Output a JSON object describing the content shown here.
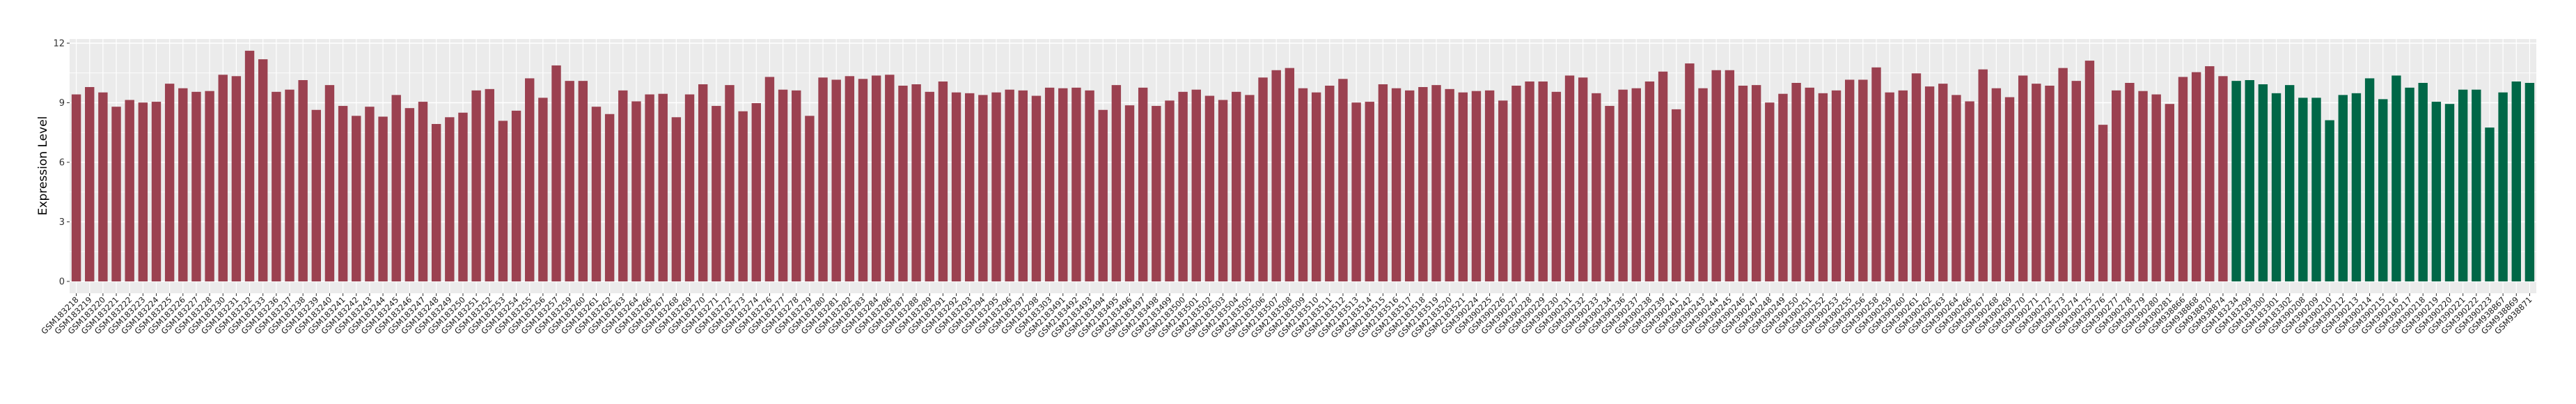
{
  "chart_data": {
    "type": "bar",
    "title": "",
    "xlabel": "",
    "ylabel": "Expression Level",
    "ylim": [
      -0.5,
      12.3
    ],
    "yticks": [
      0,
      3,
      6,
      9,
      12
    ],
    "grid": true,
    "legend": "none",
    "colors": {
      "group1": "#9B4150",
      "group2": "#006747",
      "panel": "#EBEBEB"
    },
    "series": [
      {
        "color": "#9B4150",
        "categories": [
          "GSM183218",
          "GSM183219",
          "GSM183220",
          "GSM183221",
          "GSM183222",
          "GSM183223",
          "GSM183224",
          "GSM183225",
          "GSM183226",
          "GSM183227",
          "GSM183228",
          "GSM183230",
          "GSM183231",
          "GSM183232",
          "GSM183233",
          "GSM183236",
          "GSM183237",
          "GSM183238",
          "GSM183239",
          "GSM183240",
          "GSM183241",
          "GSM183242",
          "GSM183243",
          "GSM183244",
          "GSM183245",
          "GSM183246",
          "GSM183247",
          "GSM183248",
          "GSM183249",
          "GSM183250",
          "GSM183251",
          "GSM183252",
          "GSM183253",
          "GSM183254",
          "GSM183255",
          "GSM183256",
          "GSM183257",
          "GSM183259",
          "GSM183260",
          "GSM183261",
          "GSM183262",
          "GSM183263",
          "GSM183264",
          "GSM183266",
          "GSM183267",
          "GSM183268",
          "GSM183269",
          "GSM183270",
          "GSM183271",
          "GSM183272",
          "GSM183273",
          "GSM183274",
          "GSM183276",
          "GSM183277",
          "GSM183278",
          "GSM183279",
          "GSM183280",
          "GSM183281",
          "GSM183282",
          "GSM183283",
          "GSM183284",
          "GSM183286",
          "GSM183287",
          "GSM183288",
          "GSM183289",
          "GSM183291",
          "GSM183292",
          "GSM183293",
          "GSM183294",
          "GSM183295",
          "GSM183296",
          "GSM183297",
          "GSM183298",
          "GSM183303",
          "GSM2183491",
          "GSM2183492",
          "GSM2183493",
          "GSM2183494",
          "GSM2183495",
          "GSM2183496",
          "GSM2183497",
          "GSM2183498",
          "GSM2183499",
          "GSM2183500",
          "GSM2183501",
          "GSM2183502",
          "GSM2183503",
          "GSM2183504",
          "GSM2183505",
          "GSM2183506",
          "GSM2183507",
          "GSM2183508",
          "GSM2183509",
          "GSM2183510",
          "GSM2183511",
          "GSM2183512",
          "GSM2183513",
          "GSM2183514",
          "GSM2183515",
          "GSM2183516",
          "GSM2183517",
          "GSM2183518",
          "GSM2183519",
          "GSM2183520",
          "GSM2183521",
          "GSM390224",
          "GSM390225",
          "GSM390226",
          "GSM390227",
          "GSM390228",
          "GSM390229",
          "GSM390230",
          "GSM390231",
          "GSM390232",
          "GSM390233",
          "GSM390234",
          "GSM390236",
          "GSM390237",
          "GSM390238",
          "GSM390239",
          "GSM390241",
          "GSM390242",
          "GSM390243",
          "GSM390244",
          "GSM390245",
          "GSM390246",
          "GSM390247",
          "GSM390248",
          "GSM390249",
          "GSM390250",
          "GSM390251",
          "GSM390252",
          "GSM390253",
          "GSM390255",
          "GSM390256",
          "GSM390258",
          "GSM390259",
          "GSM390260",
          "GSM390261",
          "GSM390262",
          "GSM390263",
          "GSM390264",
          "GSM390266",
          "GSM390267",
          "GSM390268",
          "GSM390269",
          "GSM390270",
          "GSM390271",
          "GSM390272",
          "GSM390273",
          "GSM390274",
          "GSM390275",
          "GSM390276",
          "GSM390277",
          "GSM390278",
          "GSM390279",
          "GSM390280",
          "GSM390281",
          "GSM938866",
          "GSM938868",
          "GSM938870",
          "GSM938874"
        ],
        "values": [
          9.42,
          9.79,
          9.52,
          8.8,
          9.14,
          9.01,
          9.05,
          9.96,
          9.73,
          9.55,
          9.59,
          10.41,
          10.34,
          11.62,
          11.19,
          9.55,
          9.66,
          10.14,
          8.64,
          9.89,
          8.84,
          8.34,
          8.8,
          8.3,
          9.39,
          8.73,
          9.05,
          7.93,
          8.27,
          8.5,
          9.62,
          9.69,
          8.09,
          8.6,
          10.23,
          9.25,
          10.88,
          10.1,
          10.1,
          8.8,
          8.43,
          9.62,
          9.07,
          9.42,
          9.45,
          8.27,
          9.42,
          9.93,
          8.84,
          9.89,
          8.57,
          8.98,
          10.3,
          9.66,
          9.62,
          8.34,
          10.27,
          10.16,
          10.34,
          10.2,
          10.37,
          10.41,
          9.86,
          9.93,
          9.55,
          10.07,
          9.52,
          9.48,
          9.39,
          9.52,
          9.66,
          9.62,
          9.35,
          9.76,
          9.73,
          9.76,
          9.62,
          8.64,
          9.89,
          8.87,
          9.76,
          8.84,
          9.11,
          9.55,
          9.66,
          9.35,
          9.14,
          9.55,
          9.39,
          10.27,
          10.64,
          10.75,
          9.73,
          9.52,
          9.86,
          10.2,
          9.01,
          9.05,
          9.93,
          9.73,
          9.62,
          9.79,
          9.89,
          9.69,
          9.52,
          9.59,
          9.62,
          9.11,
          9.86,
          10.07,
          10.07,
          9.55,
          10.37,
          10.27,
          9.48,
          8.84,
          9.66,
          9.73,
          10.07,
          10.57,
          8.67,
          10.98,
          9.73,
          10.64,
          10.64,
          9.86,
          9.89,
          9.01,
          9.45,
          10.0,
          9.76,
          9.48,
          9.62,
          10.16,
          10.16,
          10.78,
          9.52,
          9.62,
          10.48,
          9.82,
          9.96,
          9.39,
          9.07,
          10.68,
          9.73,
          9.28,
          10.37,
          9.96,
          9.86,
          10.75,
          10.1,
          11.12,
          7.89,
          9.62,
          10.0,
          9.59,
          9.42,
          8.94,
          10.3,
          10.54,
          10.84,
          10.34
        ]
      },
      {
        "color": "#006747",
        "categories": [
          "GSM183234",
          "GSM183299",
          "GSM183300",
          "GSM183301",
          "GSM183302",
          "GSM390208",
          "GSM390209",
          "GSM390210",
          "GSM390212",
          "GSM390213",
          "GSM390214",
          "GSM390215",
          "GSM390216",
          "GSM390217",
          "GSM390218",
          "GSM390219",
          "GSM390220",
          "GSM390221",
          "GSM390222",
          "GSM390223",
          "GSM938867",
          "GSM938869",
          "GSM938871"
        ],
        "values": [
          10.1,
          10.14,
          9.93,
          9.48,
          9.89,
          9.25,
          9.25,
          8.12,
          9.39,
          9.48,
          10.23,
          9.18,
          10.37,
          9.76,
          10.0,
          9.05,
          8.94,
          9.66,
          9.66,
          7.75,
          9.52,
          10.07,
          10.0
        ]
      }
    ]
  }
}
